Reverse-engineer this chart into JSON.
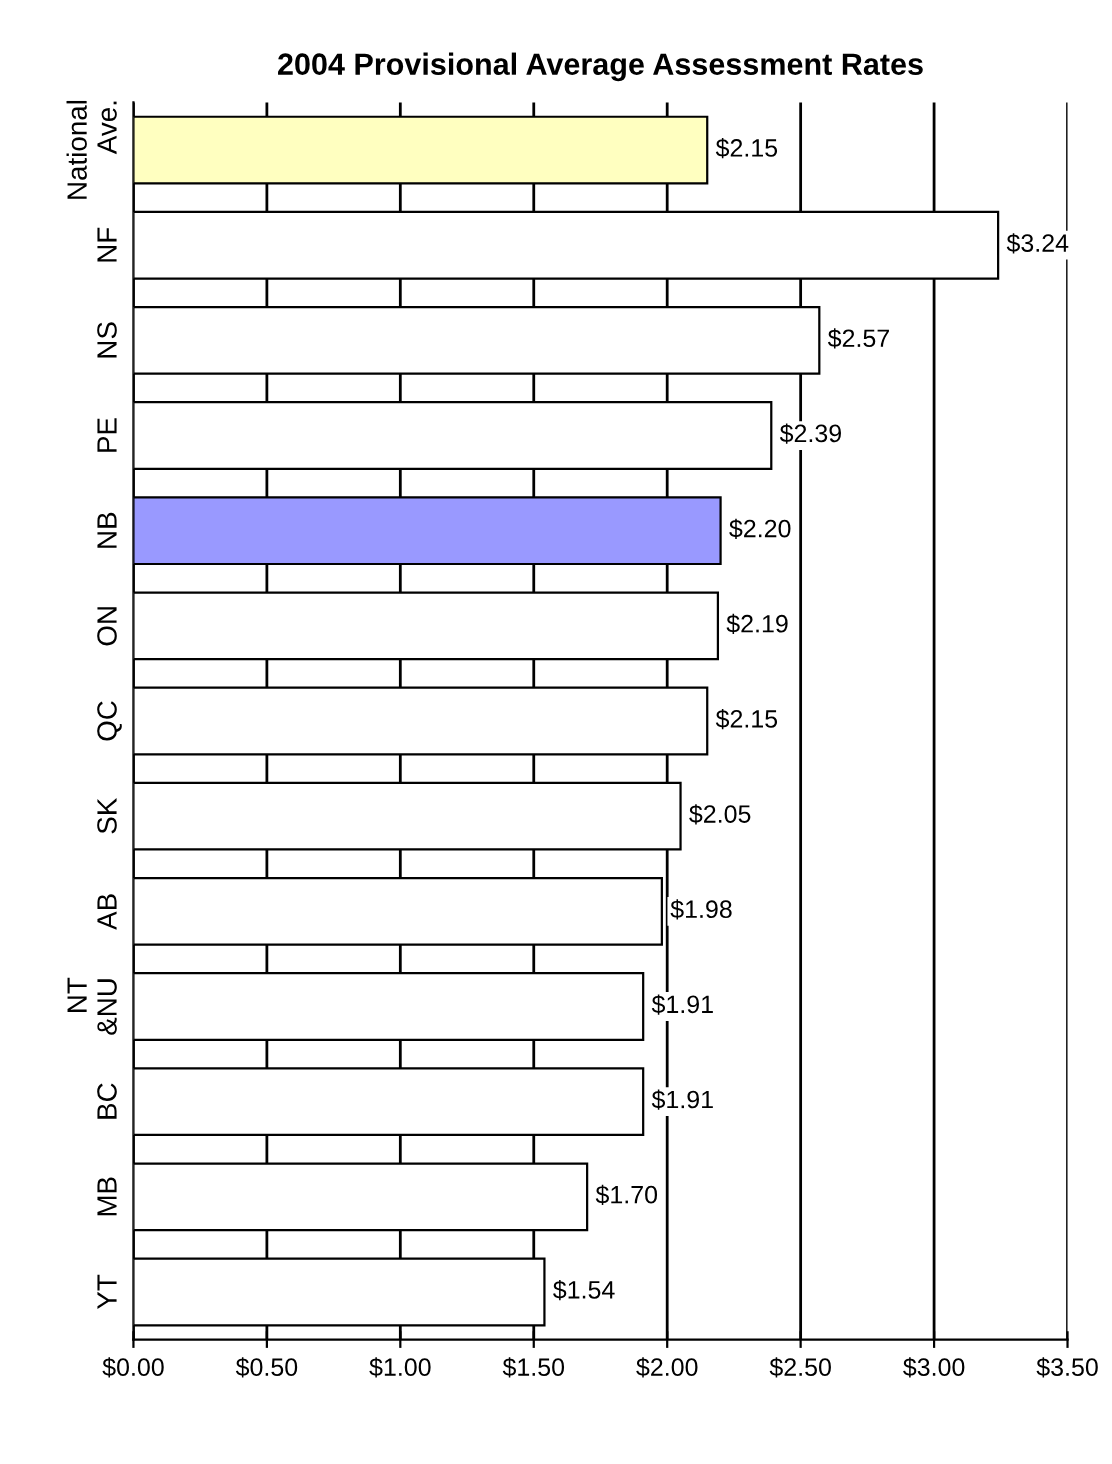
{
  "chart_data": {
    "type": "bar",
    "orientation": "horizontal",
    "title": "2004 Provisional Average Assessment Rates",
    "categories": [
      "National\nAve.",
      "NF",
      "NS",
      "PE",
      "NB",
      "ON",
      "QC",
      "SK",
      "AB",
      "NT\n&NU",
      "BC",
      "MB",
      "YT"
    ],
    "values": [
      2.15,
      3.24,
      2.57,
      2.39,
      2.2,
      2.19,
      2.15,
      2.05,
      1.98,
      1.91,
      1.91,
      1.7,
      1.54
    ],
    "colors": [
      "#ffffc0",
      "#ffffff",
      "#ffffff",
      "#ffffff",
      "#9999ff",
      "#ffffff",
      "#ffffff",
      "#ffffff",
      "#ffffff",
      "#ffffff",
      "#ffffff",
      "#ffffff",
      "#ffffff"
    ],
    "value_labels": [
      "$2.15",
      "$3.24",
      "$2.57",
      "$2.39",
      "$2.20",
      "$2.19",
      "$2.15",
      "$2.05",
      "$1.98",
      "$1.91",
      "$1.91",
      "$1.70",
      "$1.54"
    ],
    "xlim": [
      0,
      3.5
    ],
    "xticks": [
      {
        "value": 0,
        "label": "$0.00"
      },
      {
        "value": 0.5,
        "label": "$0.50"
      },
      {
        "value": 1,
        "label": "$1.00"
      },
      {
        "value": 1.5,
        "label": "$1.50"
      },
      {
        "value": 2,
        "label": "$2.00"
      },
      {
        "value": 2.5,
        "label": "$2.50"
      },
      {
        "value": 3,
        "label": "$3.00"
      },
      {
        "value": 3.5,
        "label": "$3.50"
      }
    ],
    "grid": "x"
  }
}
